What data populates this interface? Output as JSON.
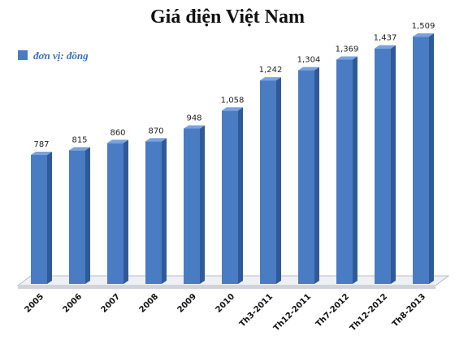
{
  "chart_data": {
    "type": "bar",
    "title": "Giá điện Việt Nam",
    "legend_label": "đơn vị: đồng",
    "color": "#4a7cc4",
    "categories": [
      "2005",
      "2006",
      "2007",
      "2008",
      "2009",
      "2010",
      "Th3-2011",
      "Th12-2011",
      "Th7-2012",
      "Th12-2012",
      "Th8-2013"
    ],
    "values": [
      787,
      815,
      860,
      870,
      948,
      1058,
      1242,
      1304,
      1369,
      1437,
      1509
    ],
    "value_labels": [
      "787",
      "815",
      "860",
      "870",
      "948",
      "1,058",
      "1,242",
      "1,304",
      "1,369",
      "1,437",
      "1,509"
    ]
  }
}
